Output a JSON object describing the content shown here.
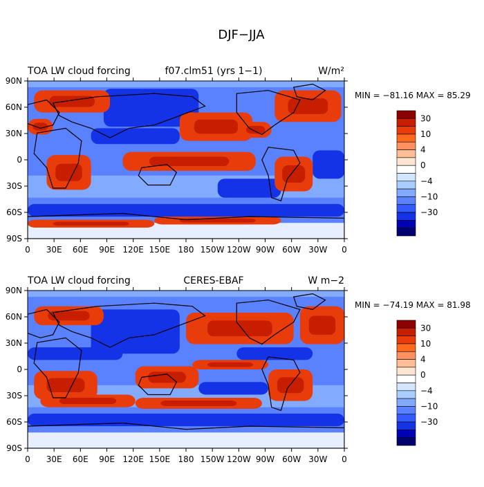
{
  "figure": {
    "title": "DJF−JJA"
  },
  "panels": [
    {
      "id": "model",
      "title_left": "TOA LW cloud forcing",
      "title_center": "f07.clm51 (yrs 1−1)",
      "units": "W/m²",
      "stats": "MIN = −81.16 MAX =  85.29",
      "min": -81.16,
      "max": 85.29
    },
    {
      "id": "obs",
      "title_left": "TOA LW cloud forcing",
      "title_center": "CERES-EBAF",
      "units": "W m−2",
      "stats": "MIN = −74.19 MAX =  81.98",
      "min": -74.19,
      "max": 81.98
    }
  ],
  "lon_ticks": [
    "0",
    "30E",
    "60E",
    "90E",
    "120E",
    "150E",
    "180",
    "150W",
    "120W",
    "90W",
    "60W",
    "30W",
    "0"
  ],
  "lat_ticks": [
    "90N",
    "60N",
    "30N",
    "0",
    "30S",
    "60S",
    "90S"
  ],
  "colorbar": {
    "colors": [
      "#8b0000",
      "#c81e00",
      "#e83c0a",
      "#ff6a1e",
      "#ff9060",
      "#ffbe96",
      "#ffe6d2",
      "#ffffff",
      "#d2e6ff",
      "#aacdff",
      "#82aaff",
      "#5a82ff",
      "#325aff",
      "#1432e6",
      "#0000b4",
      "#00006e"
    ],
    "labels": [
      "30",
      "10",
      "4",
      "0",
      "−4",
      "−10",
      "−30"
    ]
  }
}
